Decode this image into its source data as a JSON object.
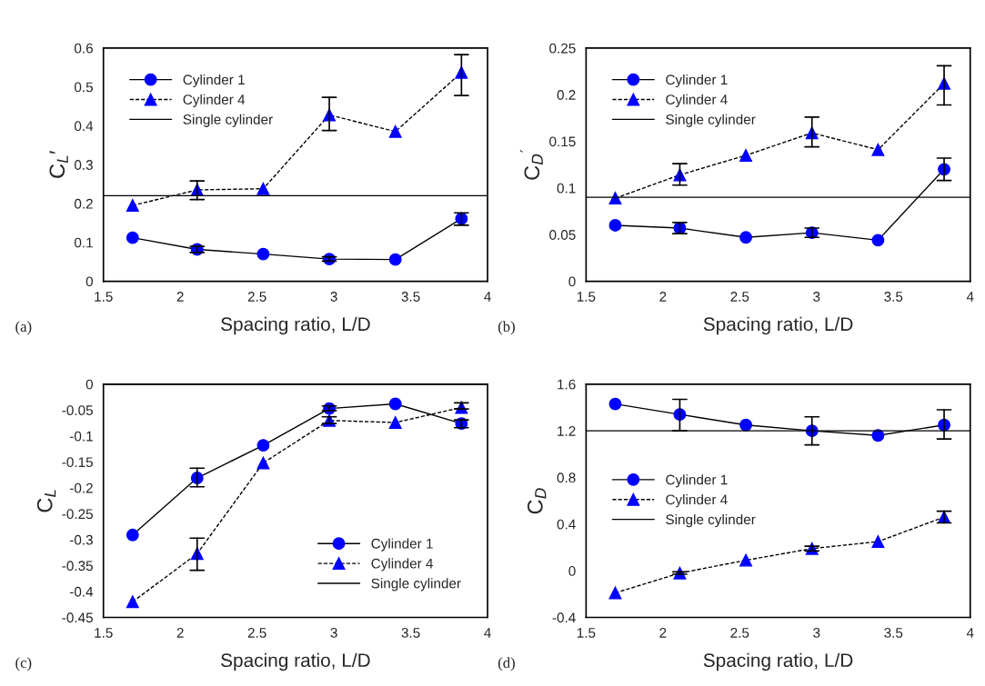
{
  "chart_data": [
    {
      "type": "line",
      "xlabel": "Spacing ratio, L/D",
      "ylabel": "C$_{L}$′",
      "annotations": [
        "(a)"
      ],
      "x": [
        1.69,
        2.11,
        2.54,
        2.97,
        3.4,
        3.83
      ],
      "xlim": [
        1.5,
        4
      ],
      "xticks": [
        1.5,
        2,
        2.5,
        3,
        3.5,
        4
      ],
      "ylim": [
        0,
        0.6
      ],
      "yticks": [
        0,
        0.1,
        0.2,
        0.3,
        0.4,
        0.5,
        0.6
      ],
      "legend": "top left",
      "grid": false,
      "series": [
        {
          "name": "Cylinder 1",
          "color": "#0000ff",
          "marker": "circle",
          "line_style": "solid",
          "values": [
            0.112,
            0.082,
            0.07,
            0.057,
            0.056,
            0.161
          ],
          "errors": [
            null,
            [
              0.074,
              0.09
            ],
            null,
            [
              0.052,
              0.063
            ],
            null,
            [
              0.144,
              0.176
            ]
          ]
        },
        {
          "name": "Cylinder 4",
          "color": "#0000ff",
          "marker": "triangle",
          "line_style": "dashed",
          "values": [
            0.195,
            0.235,
            0.238,
            0.428,
            0.385,
            0.537
          ],
          "errors": [
            null,
            [
              0.21,
              0.258
            ],
            null,
            [
              0.388,
              0.473
            ],
            null,
            [
              0.478,
              0.583
            ]
          ]
        }
      ],
      "ref_lines": [
        {
          "axis": "y",
          "value": 0.22,
          "label": "Single cylinder",
          "color": "#000000",
          "line_style": "solid"
        }
      ]
    },
    {
      "type": "line",
      "xlabel": "Spacing ratio, L/D",
      "ylabel": "C$_{D}$$^{′}$",
      "annotations": [
        "(b)"
      ],
      "x": [
        1.69,
        2.11,
        2.54,
        2.97,
        3.4,
        3.83
      ],
      "xlim": [
        1.5,
        4
      ],
      "xticks": [
        1.5,
        2,
        2.5,
        3,
        3.5,
        4
      ],
      "ylim": [
        0,
        0.25
      ],
      "yticks": [
        0,
        0.05,
        0.1,
        0.15,
        0.2,
        0.25
      ],
      "legend": "top left",
      "grid": false,
      "series": [
        {
          "name": "Cylinder 1",
          "color": "#0000ff",
          "marker": "circle",
          "line_style": "solid",
          "values": [
            0.06,
            0.057,
            0.047,
            0.052,
            0.044,
            0.12
          ],
          "errors": [
            null,
            [
              0.051,
              0.063
            ],
            null,
            [
              0.047,
              0.057
            ],
            null,
            [
              0.108,
              0.132
            ]
          ]
        },
        {
          "name": "Cylinder 4",
          "color": "#0000ff",
          "marker": "triangle",
          "line_style": "dashed",
          "values": [
            0.089,
            0.114,
            0.135,
            0.159,
            0.141,
            0.212
          ],
          "errors": [
            null,
            [
              0.103,
              0.126
            ],
            null,
            [
              0.144,
              0.176
            ],
            null,
            [
              0.189,
              0.231
            ]
          ]
        }
      ],
      "ref_lines": [
        {
          "axis": "y",
          "value": 0.09,
          "label": "Single cylinder",
          "color": "#000000",
          "line_style": "solid"
        }
      ]
    },
    {
      "type": "line",
      "xlabel": "Spacing ratio, L/D",
      "ylabel": "C$_{L}$",
      "annotations": [
        "(c)"
      ],
      "x": [
        1.69,
        2.11,
        2.54,
        2.97,
        3.4,
        3.83
      ],
      "xlim": [
        1.5,
        4
      ],
      "xticks": [
        1.5,
        2,
        2.5,
        3,
        3.5,
        4
      ],
      "ylim": [
        -0.45,
        0
      ],
      "yticks": [
        -0.45,
        -0.4,
        -0.35,
        -0.3,
        -0.25,
        -0.2,
        -0.15,
        -0.1,
        -0.05,
        0
      ],
      "legend": "bottom right",
      "grid": false,
      "series": [
        {
          "name": "Cylinder 1",
          "color": "#0000ff",
          "marker": "circle",
          "line_style": "solid",
          "values": [
            -0.291,
            -0.181,
            -0.118,
            -0.047,
            -0.038,
            -0.076
          ],
          "errors": [
            null,
            [
              -0.198,
              -0.162
            ],
            null,
            [
              -0.051,
              -0.042
            ],
            null,
            [
              -0.084,
              -0.069
            ]
          ]
        },
        {
          "name": "Cylinder 4",
          "color": "#0000ff",
          "marker": "triangle",
          "line_style": "dashed",
          "values": [
            -0.42,
            -0.327,
            -0.152,
            -0.07,
            -0.074,
            -0.045
          ],
          "errors": [
            null,
            [
              -0.359,
              -0.297
            ],
            null,
            [
              -0.076,
              -0.063
            ],
            null,
            [
              -0.048,
              -0.036
            ]
          ]
        }
      ],
      "ref_lines": [
        {
          "axis": "y",
          "value": 0,
          "label": "Single cylinder",
          "color": "#000000",
          "line_style": "solid"
        }
      ]
    },
    {
      "type": "line",
      "xlabel": "Spacing ratio, L/D",
      "ylabel": "C$_{D}$",
      "annotations": [
        "(d)"
      ],
      "x": [
        1.69,
        2.11,
        2.54,
        2.97,
        3.4,
        3.83
      ],
      "xlim": [
        1.5,
        4
      ],
      "xticks": [
        1.5,
        2,
        2.5,
        3,
        3.5,
        4
      ],
      "ylim": [
        -0.4,
        1.6
      ],
      "yticks": [
        -0.4,
        0,
        0.4,
        0.8,
        1.2,
        1.6
      ],
      "legend": "center left",
      "grid": false,
      "series": [
        {
          "name": "Cylinder 1",
          "color": "#0000ff",
          "marker": "circle",
          "line_style": "solid",
          "values": [
            1.43,
            1.34,
            1.25,
            1.2,
            1.16,
            1.25
          ],
          "errors": [
            null,
            [
              1.2,
              1.47
            ],
            null,
            [
              1.08,
              1.32
            ],
            null,
            [
              1.13,
              1.38
            ]
          ]
        },
        {
          "name": "Cylinder 4",
          "color": "#0000ff",
          "marker": "triangle",
          "line_style": "dashed",
          "values": [
            -0.19,
            -0.02,
            0.09,
            0.19,
            0.25,
            0.46
          ],
          "errors": [
            null,
            [
              -0.03,
              -0.01
            ],
            null,
            [
              0.17,
              0.21
            ],
            null,
            [
              0.41,
              0.51
            ]
          ]
        }
      ],
      "ref_lines": [
        {
          "axis": "y",
          "value": 1.2,
          "label": "Single cylinder",
          "color": "#000000",
          "line_style": "solid"
        }
      ]
    }
  ]
}
